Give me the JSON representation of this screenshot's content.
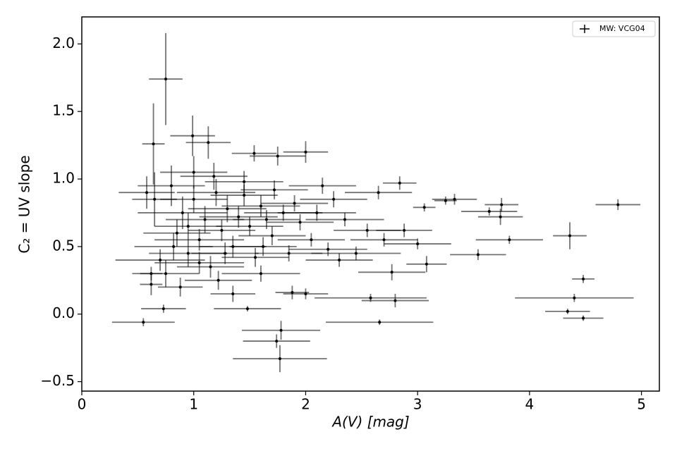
{
  "chart_data": {
    "type": "errorbar",
    "xlabel": "A(V) [mag]",
    "ylabel": "C₂ = UV slope",
    "xlim": [
      0,
      5.16
    ],
    "ylim": [
      -0.57,
      2.2
    ],
    "xticks": [
      0,
      1,
      2,
      3,
      4,
      5
    ],
    "yticks": [
      {
        "value": -0.5,
        "label": "−0.5"
      },
      {
        "value": 0,
        "label": "0.0"
      },
      {
        "value": 0.5,
        "label": "0.5"
      },
      {
        "value": 1,
        "label": "1.0"
      },
      {
        "value": 1.5,
        "label": "1.5"
      },
      {
        "value": 2,
        "label": "2.0"
      }
    ],
    "legend": "upper right",
    "series": [
      {
        "name": "MW: VCG04",
        "color": "#000000",
        "x": [
          0.75,
          0.64,
          4.79,
          4.36,
          4.4,
          4.34,
          4.48,
          4.48,
          3.82,
          3.75,
          3.74,
          3.64,
          3.54,
          3.33,
          3.25,
          3.08,
          3.06,
          2.77,
          2.66,
          2.58,
          2.8,
          2.84,
          1.77,
          1.78,
          1.74,
          0.55,
          0.73,
          1.48,
          2.0,
          1.88,
          2.0,
          1.75,
          1.54,
          1.13,
          0.99,
          0.62,
          0.62,
          0.7,
          0.8,
          0.85,
          0.9,
          0.95,
          1.0,
          1.05,
          1.1,
          1.15,
          1.2,
          1.25,
          1.3,
          1.35,
          1.4,
          1.45,
          1.5,
          1.55,
          1.6,
          1.65,
          1.7,
          1.8,
          1.85,
          1.9,
          1.95,
          2.05,
          2.1,
          2.2,
          2.25,
          2.35,
          2.45,
          2.55,
          2.65,
          2.7,
          2.88,
          3.0,
          0.65,
          0.75,
          0.88,
          1.0,
          1.22,
          1.35,
          1.6,
          0.58,
          0.82,
          1.18,
          1.45,
          1.72,
          2.15,
          1.05,
          1.28,
          0.95,
          1.62,
          2.3
        ],
        "values": [
          1.74,
          1.26,
          0.81,
          0.58,
          0.12,
          0.02,
          -0.03,
          0.26,
          0.55,
          0.81,
          0.72,
          0.76,
          0.44,
          0.85,
          0.84,
          0.37,
          0.79,
          0.31,
          -0.06,
          0.12,
          0.1,
          0.97,
          -0.33,
          -0.12,
          -0.2,
          -0.06,
          0.04,
          0.04,
          0.15,
          0.16,
          1.2,
          1.17,
          1.19,
          1.27,
          1.32,
          0.22,
          0.3,
          0.4,
          0.95,
          0.6,
          0.75,
          0.45,
          0.85,
          0.55,
          0.7,
          0.35,
          0.9,
          0.62,
          0.78,
          0.5,
          0.72,
          0.88,
          0.65,
          0.42,
          0.8,
          0.7,
          0.58,
          0.75,
          0.45,
          0.82,
          0.68,
          0.55,
          0.75,
          0.48,
          0.85,
          0.7,
          0.45,
          0.62,
          0.9,
          0.55,
          0.62,
          0.52,
          0.85,
          0.3,
          0.2,
          1.05,
          0.25,
          0.15,
          0.3,
          0.9,
          0.5,
          1.02,
          0.98,
          0.92,
          0.95,
          0.38,
          0.45,
          0.65,
          0.5,
          0.4
        ],
        "xerr": [
          0.15,
          0.1,
          0.2,
          0.15,
          0.53,
          0.2,
          0.18,
          0.1,
          0.3,
          0.15,
          0.2,
          0.25,
          0.25,
          0.2,
          0.1,
          0.18,
          0.1,
          0.3,
          0.48,
          0.5,
          0.3,
          0.15,
          0.42,
          0.35,
          0.3,
          0.28,
          0.2,
          0.3,
          0.2,
          0.15,
          0.2,
          0.25,
          0.2,
          0.2,
          0.2,
          0.1,
          0.1,
          0.4,
          0.3,
          0.3,
          0.4,
          0.35,
          0.3,
          0.4,
          0.35,
          0.3,
          0.35,
          0.3,
          0.35,
          0.3,
          0.35,
          0.3,
          0.3,
          0.3,
          0.35,
          0.3,
          0.3,
          0.35,
          0.3,
          0.3,
          0.3,
          0.3,
          0.35,
          0.35,
          0.3,
          0.35,
          0.4,
          0.3,
          0.3,
          0.3,
          0.25,
          0.3,
          0.2,
          0.3,
          0.2,
          0.3,
          0.3,
          0.2,
          0.35,
          0.25,
          0.35,
          0.3,
          0.35,
          0.3,
          0.3,
          0.4,
          0.3,
          0.3,
          0.3,
          0.3
        ],
        "yerr": [
          0.34,
          0.3,
          0.04,
          0.1,
          0.03,
          0.02,
          0.02,
          0.03,
          0.03,
          0.05,
          0.06,
          0.03,
          0.04,
          0.04,
          0.03,
          0.06,
          0.03,
          0.06,
          0.02,
          0.03,
          0.05,
          0.05,
          0.1,
          0.07,
          0.05,
          0.03,
          0.03,
          0.02,
          0.04,
          0.05,
          0.08,
          0.07,
          0.06,
          0.12,
          0.15,
          0.08,
          0.05,
          0.08,
          0.15,
          0.1,
          0.12,
          0.1,
          0.1,
          0.08,
          0.1,
          0.08,
          0.1,
          0.08,
          0.1,
          0.08,
          0.08,
          0.08,
          0.07,
          0.07,
          0.08,
          0.07,
          0.07,
          0.06,
          0.06,
          0.06,
          0.06,
          0.05,
          0.06,
          0.05,
          0.06,
          0.05,
          0.05,
          0.05,
          0.05,
          0.05,
          0.05,
          0.04,
          0.2,
          0.1,
          0.07,
          0.12,
          0.07,
          0.06,
          0.06,
          0.12,
          0.1,
          0.1,
          0.08,
          0.07,
          0.06,
          0.08,
          0.08,
          0.1,
          0.07,
          0.05
        ]
      }
    ]
  }
}
